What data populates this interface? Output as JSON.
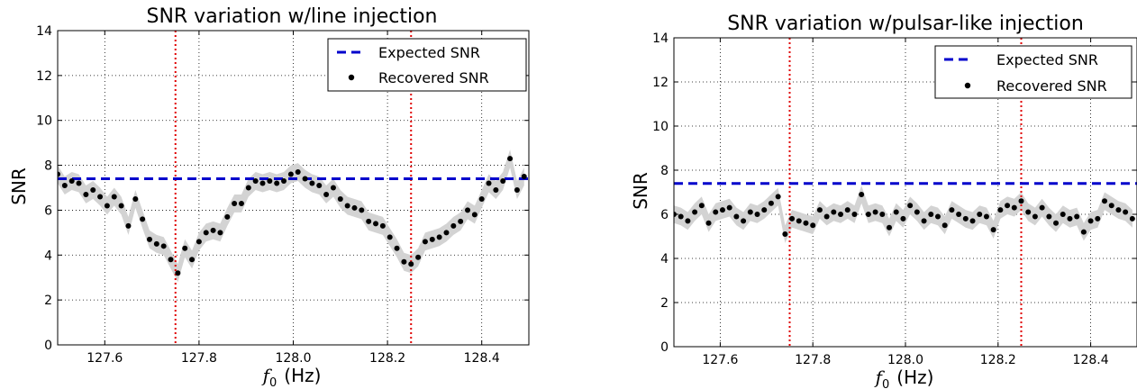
{
  "chart_data": [
    {
      "type": "scatter",
      "title": "SNR variation w/line injection",
      "xlabel_symbol": "f",
      "xlabel_sub": "0",
      "xlabel_unit": "(Hz)",
      "ylabel": "SNR",
      "xlim": [
        127.5,
        128.5
      ],
      "ylim": [
        0,
        14
      ],
      "xticks": [
        127.6,
        127.8,
        128.0,
        128.2,
        128.4
      ],
      "xtick_labels": [
        "127.6",
        "127.8",
        "128.0",
        "128.2",
        "128.4"
      ],
      "yticks": [
        0,
        2,
        4,
        6,
        8,
        10,
        12,
        14
      ],
      "ytick_labels": [
        "0",
        "2",
        "4",
        "6",
        "8",
        "10",
        "12",
        "14"
      ],
      "grid": true,
      "legend_position": "top-right",
      "legend": [
        "Expected SNR",
        "Recovered SNR"
      ],
      "expected_snr": 7.4,
      "vlines": [
        127.75,
        128.25
      ],
      "band_halfwidth": 0.4,
      "series": [
        {
          "name": "Recovered SNR",
          "x": [
            127.5,
            127.515,
            127.53,
            127.545,
            127.56,
            127.575,
            127.59,
            127.605,
            127.62,
            127.635,
            127.65,
            127.665,
            127.68,
            127.695,
            127.71,
            127.725,
            127.74,
            127.755,
            127.77,
            127.785,
            127.8,
            127.815,
            127.83,
            127.845,
            127.86,
            127.875,
            127.89,
            127.905,
            127.92,
            127.935,
            127.95,
            127.965,
            127.98,
            127.995,
            128.01,
            128.025,
            128.04,
            128.055,
            128.07,
            128.085,
            128.1,
            128.115,
            128.13,
            128.145,
            128.16,
            128.175,
            128.19,
            128.205,
            128.22,
            128.235,
            128.25,
            128.265,
            128.28,
            128.295,
            128.31,
            128.325,
            128.34,
            128.355,
            128.37,
            128.385,
            128.4,
            128.415,
            128.43,
            128.445,
            128.46,
            128.475,
            128.49
          ],
          "y": [
            7.6,
            7.1,
            7.3,
            7.2,
            6.7,
            6.9,
            6.6,
            6.2,
            6.6,
            6.2,
            5.3,
            6.5,
            5.6,
            4.7,
            4.5,
            4.4,
            3.8,
            3.2,
            4.3,
            3.8,
            4.6,
            5.0,
            5.1,
            5.0,
            5.7,
            6.3,
            6.3,
            7.0,
            7.3,
            7.2,
            7.3,
            7.2,
            7.3,
            7.6,
            7.7,
            7.4,
            7.2,
            7.1,
            6.7,
            7.0,
            6.5,
            6.2,
            6.1,
            6.0,
            5.5,
            5.4,
            5.3,
            4.8,
            4.3,
            3.7,
            3.6,
            3.9,
            4.6,
            4.7,
            4.8,
            5.0,
            5.3,
            5.5,
            6.0,
            5.8,
            6.5,
            7.2,
            6.9,
            7.3,
            8.3,
            6.9,
            7.5
          ]
        }
      ]
    },
    {
      "type": "scatter",
      "title": "SNR variation w/pulsar-like injection",
      "xlabel_symbol": "f",
      "xlabel_sub": "0",
      "xlabel_unit": "(Hz)",
      "ylabel": "SNR",
      "xlim": [
        127.5,
        128.5
      ],
      "ylim": [
        0,
        14
      ],
      "xticks": [
        127.6,
        127.8,
        128.0,
        128.2,
        128.4
      ],
      "xtick_labels": [
        "127.6",
        "127.8",
        "128.0",
        "128.2",
        "128.4"
      ],
      "yticks": [
        0,
        2,
        4,
        6,
        8,
        10,
        12,
        14
      ],
      "ytick_labels": [
        "0",
        "2",
        "4",
        "6",
        "8",
        "10",
        "12",
        "14"
      ],
      "grid": true,
      "legend_position": "top-right",
      "legend": [
        "Expected SNR",
        "Recovered SNR"
      ],
      "expected_snr": 7.4,
      "vlines": [
        127.75,
        128.25
      ],
      "band_halfwidth": 0.4,
      "series": [
        {
          "name": "Recovered SNR",
          "x": [
            127.5,
            127.515,
            127.53,
            127.545,
            127.56,
            127.575,
            127.59,
            127.605,
            127.62,
            127.635,
            127.65,
            127.665,
            127.68,
            127.695,
            127.71,
            127.725,
            127.74,
            127.755,
            127.77,
            127.785,
            127.8,
            127.815,
            127.83,
            127.845,
            127.86,
            127.875,
            127.89,
            127.905,
            127.92,
            127.935,
            127.95,
            127.965,
            127.98,
            127.995,
            128.01,
            128.025,
            128.04,
            128.055,
            128.07,
            128.085,
            128.1,
            128.115,
            128.13,
            128.145,
            128.16,
            128.175,
            128.19,
            128.205,
            128.22,
            128.235,
            128.25,
            128.265,
            128.28,
            128.295,
            128.31,
            128.325,
            128.34,
            128.355,
            128.37,
            128.385,
            128.4,
            128.415,
            128.43,
            128.445,
            128.46,
            128.475,
            128.49
          ],
          "y": [
            6.0,
            5.9,
            5.7,
            6.1,
            6.4,
            5.6,
            6.1,
            6.2,
            6.3,
            5.9,
            5.7,
            6.1,
            6.0,
            6.2,
            6.5,
            6.8,
            5.1,
            5.8,
            5.7,
            5.6,
            5.5,
            6.2,
            5.9,
            6.1,
            6.0,
            6.2,
            6.0,
            6.9,
            6.0,
            6.1,
            6.0,
            5.4,
            6.1,
            5.8,
            6.4,
            6.1,
            5.7,
            6.0,
            5.9,
            5.5,
            6.2,
            6.0,
            5.8,
            5.7,
            6.0,
            5.9,
            5.3,
            6.2,
            6.4,
            6.3,
            6.6,
            6.1,
            5.9,
            6.3,
            5.9,
            5.6,
            6.0,
            5.8,
            5.9,
            5.2,
            5.7,
            5.8,
            6.6,
            6.4,
            6.2,
            6.1,
            5.8
          ]
        }
      ]
    }
  ]
}
